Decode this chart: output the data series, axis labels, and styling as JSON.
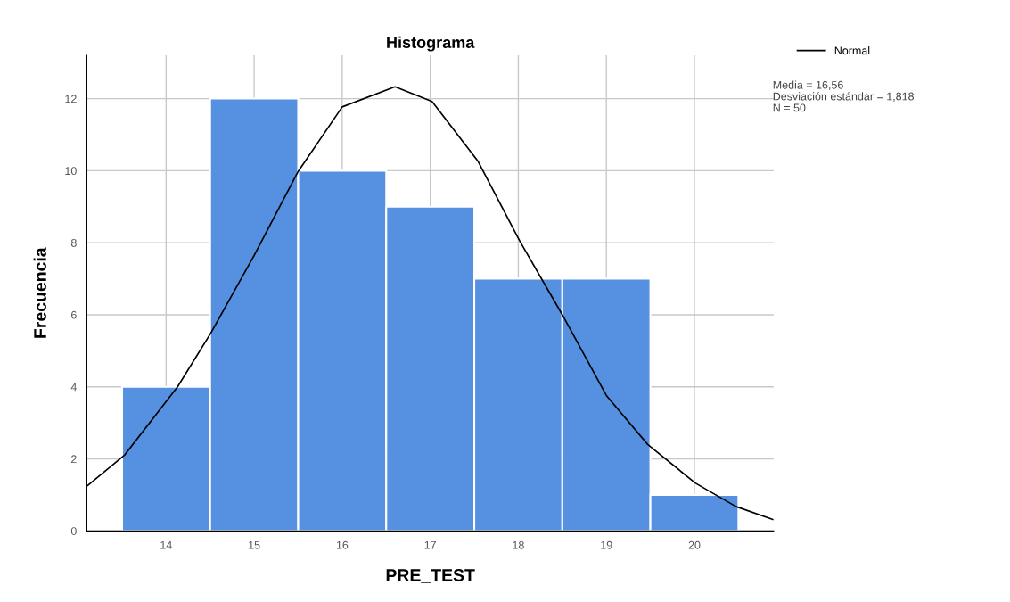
{
  "chart_data": {
    "type": "histogram",
    "title": "Histograma",
    "xlabel": "PRE_TEST",
    "ylabel": "Frecuencia",
    "series": [
      {
        "bins": [
          13.5,
          14.5,
          15.5,
          16.5,
          17.5,
          18.5,
          19.5,
          20.5
        ],
        "values": [
          4,
          12,
          10,
          9,
          7,
          7,
          1
        ],
        "color": "#5591e0"
      },
      {
        "type": "line",
        "name": "Normal",
        "color": "#000000",
        "x": [
          13.11,
          13.53,
          14.13,
          14.51,
          15.0,
          15.5,
          16.0,
          16.6,
          17.02,
          17.54,
          18.02,
          18.5,
          19.0,
          19.47,
          20.01,
          20.47,
          20.89
        ],
        "values": [
          1.26,
          2.11,
          4.0,
          5.5,
          7.65,
          9.98,
          11.77,
          12.33,
          11.92,
          10.27,
          8.03,
          6.0,
          3.76,
          2.4,
          1.33,
          0.68,
          0.32
        ]
      }
    ],
    "xlim": [
      13.1,
      20.9
    ],
    "xticks": [
      14,
      15,
      16,
      17,
      18,
      19,
      20
    ],
    "ylim": [
      0,
      13.2
    ],
    "yticks": [
      0,
      2,
      4,
      6,
      8,
      10,
      12
    ],
    "grid": true,
    "legend": "top right",
    "annotations": [
      "Media = 16,56",
      "Desviación estándar = 1,818",
      "N = 50"
    ]
  }
}
